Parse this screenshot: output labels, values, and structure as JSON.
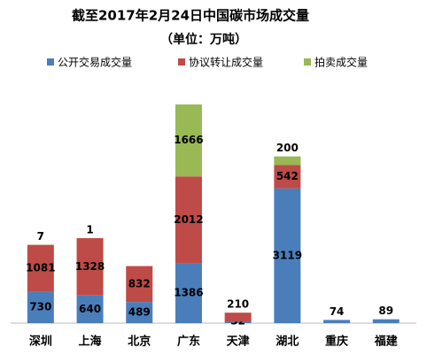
{
  "chart_data": {
    "type": "stacked_bar",
    "title": "截至2017年2月24日中国碳市场成交量",
    "subtitle": "（单位：万吨）",
    "categories": [
      "深圳",
      "上海",
      "北京",
      "广东",
      "天津",
      "湖北",
      "重庆",
      "福建"
    ],
    "series": [
      {
        "name": "公开交易成交量",
        "color": "#4a7ebb",
        "values": [
          730,
          640,
          489,
          1386,
          32,
          3119,
          74,
          89
        ]
      },
      {
        "name": "协议转让成交量",
        "color": "#be4b48",
        "values": [
          1081,
          1328,
          832,
          2012,
          210,
          542,
          null,
          null
        ]
      },
      {
        "name": "拍卖成交量",
        "color": "#98b954",
        "values": [
          7,
          1,
          null,
          1666,
          null,
          200,
          null,
          null
        ]
      }
    ],
    "legend": "top"
  }
}
